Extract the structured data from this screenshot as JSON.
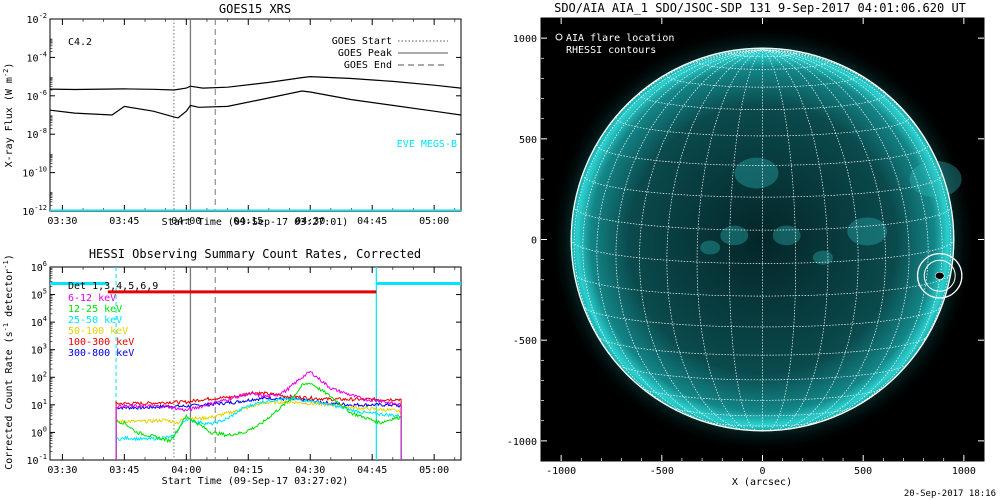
{
  "colors": {
    "background": "#ffffff",
    "axis": "#000000",
    "eve": "#00e5ff",
    "disk_edge": "#15c6c6",
    "disk_core": "#07393c",
    "sky": "#000000",
    "grid": "#ffffff"
  },
  "footer": {
    "date": "20-Sep-2017 18:16"
  },
  "chart_data": [
    {
      "id": "goes",
      "type": "line",
      "title": "GOES15 XRS",
      "xlabel": "Start Time (09-Sep-17 03:27:01)",
      "ylabel": "X-ray Flux (W m",
      "ylabel_sup": "-2",
      "ylabel_end": ")",
      "x_ticks": [
        "03:30",
        "03:45",
        "04:00",
        "04:15",
        "04:30",
        "04:45",
        "05:00"
      ],
      "x_tick_minutes": [
        30,
        45,
        60,
        75,
        90,
        105,
        120
      ],
      "xlim_minutes": [
        27,
        126.5
      ],
      "y_log": true,
      "ylim_exp": [
        -12,
        -2
      ],
      "y_ticks": [
        {
          "base": "10",
          "exp": "-2"
        },
        {
          "base": "10",
          "exp": "-4"
        },
        {
          "base": "10",
          "exp": "-6"
        },
        {
          "base": "10",
          "exp": "-8"
        },
        {
          "base": "10",
          "exp": "-10"
        },
        {
          "base": "10",
          "exp": "-12"
        }
      ],
      "y_tick_exp": [
        -2,
        -4,
        -6,
        -8,
        -10,
        -12
      ],
      "class_label": "C4.2",
      "legend": [
        {
          "label": "GOES Start",
          "style": "dotted"
        },
        {
          "label": "GOES Peak",
          "style": "solid"
        },
        {
          "label": "GOES End",
          "style": "dashed"
        }
      ],
      "eve_label": "EVE MEGS-B",
      "event_minutes": {
        "start": 57,
        "peak": 61,
        "end": 67
      },
      "series": [
        {
          "role": "long_channel",
          "x": [
            27,
            33,
            45,
            52,
            57,
            60,
            61,
            64,
            70,
            80,
            88,
            90,
            100,
            110,
            120,
            126.5
          ],
          "y_exp": [
            -5.65,
            -5.67,
            -5.64,
            -5.66,
            -5.7,
            -5.6,
            -5.5,
            -5.6,
            -5.55,
            -5.3,
            -5.05,
            -5.0,
            -5.1,
            -5.25,
            -5.45,
            -5.6
          ]
        },
        {
          "role": "short_channel",
          "x": [
            27,
            33,
            42,
            45,
            52,
            57,
            58,
            60,
            61,
            63,
            70,
            78,
            88,
            90,
            100,
            110,
            120,
            126.5
          ],
          "y_exp": [
            -6.75,
            -6.9,
            -7.0,
            -6.55,
            -6.8,
            -7.1,
            -7.15,
            -6.8,
            -6.5,
            -6.6,
            -6.55,
            -6.2,
            -5.75,
            -5.8,
            -6.2,
            -6.5,
            -6.8,
            -7.0
          ]
        },
        {
          "role": "eve_baseline",
          "x": [
            27,
            126.5
          ],
          "y_exp": [
            -12,
            -12
          ]
        }
      ]
    },
    {
      "id": "hessi",
      "type": "line",
      "title": "HESSI Observing Summary Count Rates, Corrected",
      "xlabel": "Start Time (09-Sep-17 03:27:02)",
      "ylabel": "Corrected Count Rate (s",
      "ylabel_sup": "-1",
      "ylabel_end": " detector",
      "ylabel_sup2": "-1",
      "ylabel_end2": ")",
      "x_ticks": [
        "03:30",
        "03:45",
        "04:00",
        "04:15",
        "04:30",
        "04:45",
        "05:00"
      ],
      "x_tick_minutes": [
        30,
        45,
        60,
        75,
        90,
        105,
        120
      ],
      "xlim_minutes": [
        27,
        126.5
      ],
      "y_log": true,
      "ylim_exp": [
        -1,
        6
      ],
      "y_ticks": [
        {
          "base": "10",
          "exp": "6"
        },
        {
          "base": "10",
          "exp": "5"
        },
        {
          "base": "10",
          "exp": "4"
        },
        {
          "base": "10",
          "exp": "3"
        },
        {
          "base": "10",
          "exp": "2"
        },
        {
          "base": "10",
          "exp": "1"
        },
        {
          "base": "10",
          "exp": "0"
        },
        {
          "base": "10",
          "exp": "-1"
        }
      ],
      "y_tick_exp": [
        6,
        5,
        4,
        3,
        2,
        1,
        0,
        -1
      ],
      "detectors_label": "Det 1,3,4,5,6,9",
      "event_minutes": {
        "start": 57,
        "peak": 61,
        "end": 67
      },
      "legend": [
        {
          "label": "6-12 keV",
          "color": "#e600e6"
        },
        {
          "label": "12-25 keV",
          "color": "#00e000"
        },
        {
          "label": "25-50 keV",
          "color": "#00e5ff"
        },
        {
          "label": "50-100 keV",
          "color": "#e6d200"
        },
        {
          "label": "100-300 keV",
          "color": "#e60000"
        },
        {
          "label": "300-800 keV",
          "color": "#0000e6"
        }
      ],
      "series": [
        {
          "name": "6-12 keV",
          "color": "#e600e6",
          "x": [
            43,
            50,
            55,
            60,
            65,
            70,
            75,
            80,
            84,
            88,
            90,
            95,
            100,
            103,
            107,
            110,
            112
          ],
          "y_exp": [
            0.95,
            0.95,
            0.95,
            0.8,
            1.0,
            1.2,
            1.4,
            1.3,
            1.5,
            2.0,
            2.2,
            1.6,
            1.35,
            1.2,
            1.15,
            1.05,
            1.0
          ]
        },
        {
          "name": "12-25 keV",
          "color": "#00e000",
          "x": [
            43,
            45,
            48,
            52,
            56,
            58,
            60,
            63,
            66,
            70,
            74,
            78,
            82,
            86,
            88,
            90,
            95,
            100,
            104,
            107,
            110,
            112
          ],
          "y_exp": [
            0.4,
            0.35,
            0.0,
            -0.15,
            -0.3,
            0.1,
            0.6,
            0.3,
            0.0,
            -0.1,
            0.0,
            0.3,
            0.8,
            1.3,
            1.7,
            1.8,
            1.3,
            0.7,
            0.5,
            0.35,
            0.5,
            0.55
          ]
        },
        {
          "name": "25-50 keV",
          "color": "#00e5ff",
          "x": [
            43,
            46,
            50,
            54,
            57,
            59,
            60,
            62,
            66,
            70,
            74,
            78,
            82,
            86,
            90,
            95,
            100,
            104,
            108,
            112
          ],
          "y_exp": [
            -0.25,
            -0.2,
            -0.25,
            -0.2,
            -0.15,
            0.35,
            0.5,
            0.4,
            0.3,
            0.5,
            0.9,
            1.1,
            1.2,
            1.2,
            1.15,
            1.0,
            0.8,
            0.7,
            0.65,
            0.6
          ]
        },
        {
          "name": "50-100 keV",
          "color": "#e6d200",
          "x": [
            43,
            50,
            55,
            58,
            60,
            63,
            66,
            70,
            74,
            78,
            82,
            86,
            90,
            95,
            100,
            105,
            110,
            112
          ],
          "y_exp": [
            0.4,
            0.4,
            0.45,
            0.35,
            0.55,
            0.5,
            0.55,
            0.7,
            0.85,
            1.05,
            1.1,
            1.1,
            1.05,
            1.0,
            0.9,
            0.85,
            0.8,
            0.75
          ]
        },
        {
          "name": "100-300 keV",
          "color": "#e60000",
          "x": [
            43,
            50,
            56,
            60,
            64,
            68,
            72,
            76,
            80,
            85,
            90,
            95,
            100,
            105,
            110,
            112
          ],
          "y_exp": [
            1.05,
            1.05,
            1.1,
            1.1,
            1.2,
            1.25,
            1.3,
            1.45,
            1.4,
            1.3,
            1.25,
            1.2,
            1.2,
            1.2,
            1.2,
            1.2
          ]
        },
        {
          "name": "300-800 keV",
          "color": "#0000e6",
          "x": [
            43,
            50,
            56,
            60,
            64,
            68,
            72,
            76,
            80,
            85,
            90,
            95,
            100,
            105,
            110,
            112
          ],
          "y_exp": [
            0.9,
            0.9,
            0.95,
            0.95,
            1.0,
            1.05,
            1.1,
            1.2,
            1.25,
            1.2,
            1.15,
            1.05,
            1.0,
            1.0,
            1.0,
            0.95
          ]
        }
      ],
      "attenuator_segments": [
        {
          "x": [
            27,
            41
          ],
          "y_exp": 5.4,
          "color": "#00e5ff"
        },
        {
          "x": [
            41,
            106
          ],
          "y_exp": 5.1,
          "color": "#e60000"
        },
        {
          "x": [
            106,
            126.5
          ],
          "y_exp": 5.4,
          "color": "#00e5ff"
        }
      ],
      "cyan_markers_minutes": [
        43,
        106
      ]
    },
    {
      "id": "aia",
      "type": "scatter",
      "title": "SDO/AIA AIA_1 SDO/JSOC-SDP 131  9-Sep-2017 04:01:06.620 UT",
      "xlabel": "X (arcsec)",
      "ylabel": "",
      "xlim": [
        -1100,
        1100
      ],
      "ylim": [
        -1100,
        1100
      ],
      "x_ticks": [
        "-1000",
        "-500",
        "0",
        "500",
        "1000"
      ],
      "x_tick_values": [
        -1000,
        -500,
        0,
        500,
        1000
      ],
      "y_ticks": [
        "1000",
        "500",
        "0",
        "-500",
        "-1000"
      ],
      "y_tick_values": [
        1000,
        500,
        0,
        -500,
        -1000
      ],
      "solar_radius": 950,
      "legend": [
        {
          "label": "AIA flare location",
          "marker": "circle"
        },
        {
          "label": "RHESSI contours",
          "marker": "none"
        }
      ],
      "flare_location": {
        "x": 880,
        "y": -180
      },
      "flare_circle_radius": 110
    }
  ]
}
